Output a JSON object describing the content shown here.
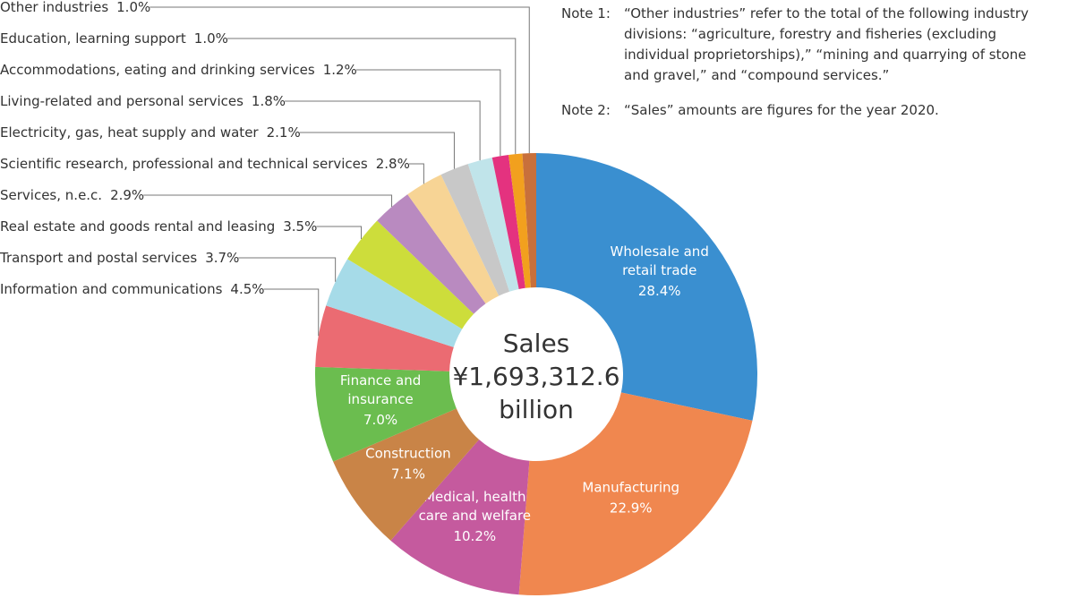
{
  "chart_data": {
    "type": "pie",
    "donut": true,
    "categories": [
      "Wholesale and\nretail trade",
      "Manufacturing",
      "Medical, health\ncare and welfare",
      "Construction",
      "Finance and\ninsurance",
      "Information and communications",
      "Transport and postal services",
      "Real estate and goods rental and leasing",
      "Services, n.e.c.",
      "Scientific research, professional and technical services",
      "Electricity, gas, heat supply and water",
      "Living-related and personal services",
      "Accommodations, eating and drinking services",
      "Education, learning support",
      "Other industries"
    ],
    "values": [
      28.4,
      22.9,
      10.2,
      7.1,
      7.0,
      4.5,
      3.7,
      3.5,
      2.9,
      2.8,
      2.1,
      1.8,
      1.2,
      1.0,
      1.0
    ],
    "value_labels": [
      "28.4%",
      "22.9%",
      "10.2%",
      "7.1%",
      "7.0%",
      "4.5%",
      "3.7%",
      "3.5%",
      "2.9%",
      "2.8%",
      "2.1%",
      "1.8%",
      "1.2%",
      "1.0%",
      "1.0%"
    ],
    "colors": [
      "#3a8fd0",
      "#f0874f",
      "#c55a9e",
      "#c98447",
      "#6bbd4f",
      "#eb6b72",
      "#a6dbe8",
      "#cddd3b",
      "#b98ac0",
      "#f7d495",
      "#c8c8c8",
      "#c0e4ea",
      "#e4327f",
      "#f2a01e",
      "#c8703b"
    ],
    "center_text": [
      "Sales",
      "¥1,693,312.6",
      "billion"
    ],
    "notes": [
      {
        "label": "Note 1:",
        "text": "“Other industries” refer to the total of the following industry\ndivisions: “agriculture, forestry and fisheries (excluding\nindividual proprietorships),” “mining and quarrying of stone\nand gravel,” and “compound services.”"
      },
      {
        "label": "Note 2:",
        "text": "“Sales” amounts are figures for the year 2020."
      }
    ]
  }
}
